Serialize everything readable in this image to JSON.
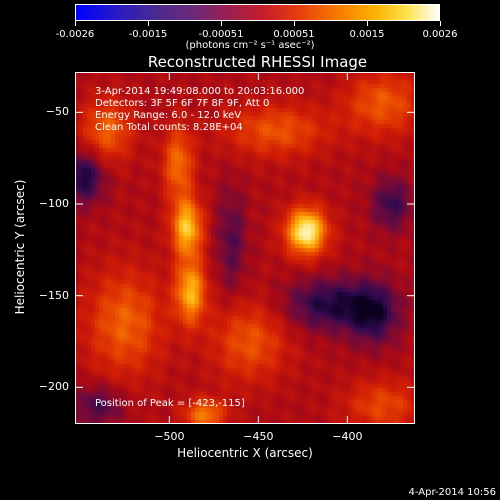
{
  "colorbar": {
    "ticks": [
      "-0.0026",
      "-0.0015",
      "-0.00051",
      "0.00051",
      "0.0015",
      "0.0026"
    ],
    "units": "(photons cm⁻² s⁻¹ asec⁻²)",
    "range": [
      -0.0026,
      0.0026
    ]
  },
  "chart_data": {
    "type": "heatmap",
    "title": "Reconstructed RHESSI Image",
    "xlabel": "Heliocentric X (arcsec)",
    "ylabel": "Heliocentric Y (arcsec)",
    "xlim": [
      -553,
      -362
    ],
    "ylim": [
      -220,
      -28
    ],
    "xticks": [
      -500,
      -450,
      -400
    ],
    "yticks": [
      -50,
      -100,
      -150,
      -200
    ],
    "info": [
      "3-Apr-2014 19:49:08.000 to 20:03:16.000",
      "Detectors: 3F 5F 6F 7F 8F 9F, Att 0",
      "Energy Range: 6.0 - 12.0 keV",
      "Clean     Total counts: 8.28E+04"
    ],
    "peak_label": "Position of Peak = [-423,-115]",
    "peak": [
      -423,
      -115
    ],
    "sources": [
      {
        "x": -423,
        "y": -115,
        "amp": 1.0,
        "sx": 8,
        "sy": 9
      },
      {
        "x": -490,
        "y": -113,
        "amp": 0.78,
        "sx": 6,
        "sy": 11
      },
      {
        "x": -488,
        "y": -148,
        "amp": 0.72,
        "sx": 6,
        "sy": 12
      },
      {
        "x": -495,
        "y": -78,
        "amp": 0.5,
        "sx": 6,
        "sy": 14
      },
      {
        "x": -480,
        "y": -215,
        "amp": 0.55,
        "sx": 8,
        "sy": 6
      },
      {
        "x": -535,
        "y": -60,
        "amp": 0.45,
        "sx": 10,
        "sy": 12
      },
      {
        "x": -440,
        "y": -60,
        "amp": 0.4,
        "sx": 20,
        "sy": 10
      },
      {
        "x": -380,
        "y": -45,
        "amp": 0.42,
        "sx": 15,
        "sy": 12
      },
      {
        "x": -525,
        "y": -165,
        "amp": 0.45,
        "sx": 15,
        "sy": 20
      },
      {
        "x": -455,
        "y": -175,
        "amp": 0.4,
        "sx": 15,
        "sy": 15
      },
      {
        "x": -380,
        "y": -210,
        "amp": 0.35,
        "sx": 15,
        "sy": 10
      }
    ],
    "holes": [
      {
        "x": -548,
        "y": -85,
        "amp": 0.6,
        "sx": 8,
        "sy": 10
      },
      {
        "x": -410,
        "y": -155,
        "amp": 0.55,
        "sx": 18,
        "sy": 10
      },
      {
        "x": -385,
        "y": -160,
        "amp": 0.5,
        "sx": 10,
        "sy": 12
      },
      {
        "x": -375,
        "y": -100,
        "amp": 0.45,
        "sx": 8,
        "sy": 10
      },
      {
        "x": -465,
        "y": -120,
        "amp": 0.35,
        "sx": 6,
        "sy": 20
      },
      {
        "x": -540,
        "y": -210,
        "amp": 0.4,
        "sx": 10,
        "sy": 8
      }
    ]
  },
  "timestamp": "4-Apr-2014 10:56"
}
